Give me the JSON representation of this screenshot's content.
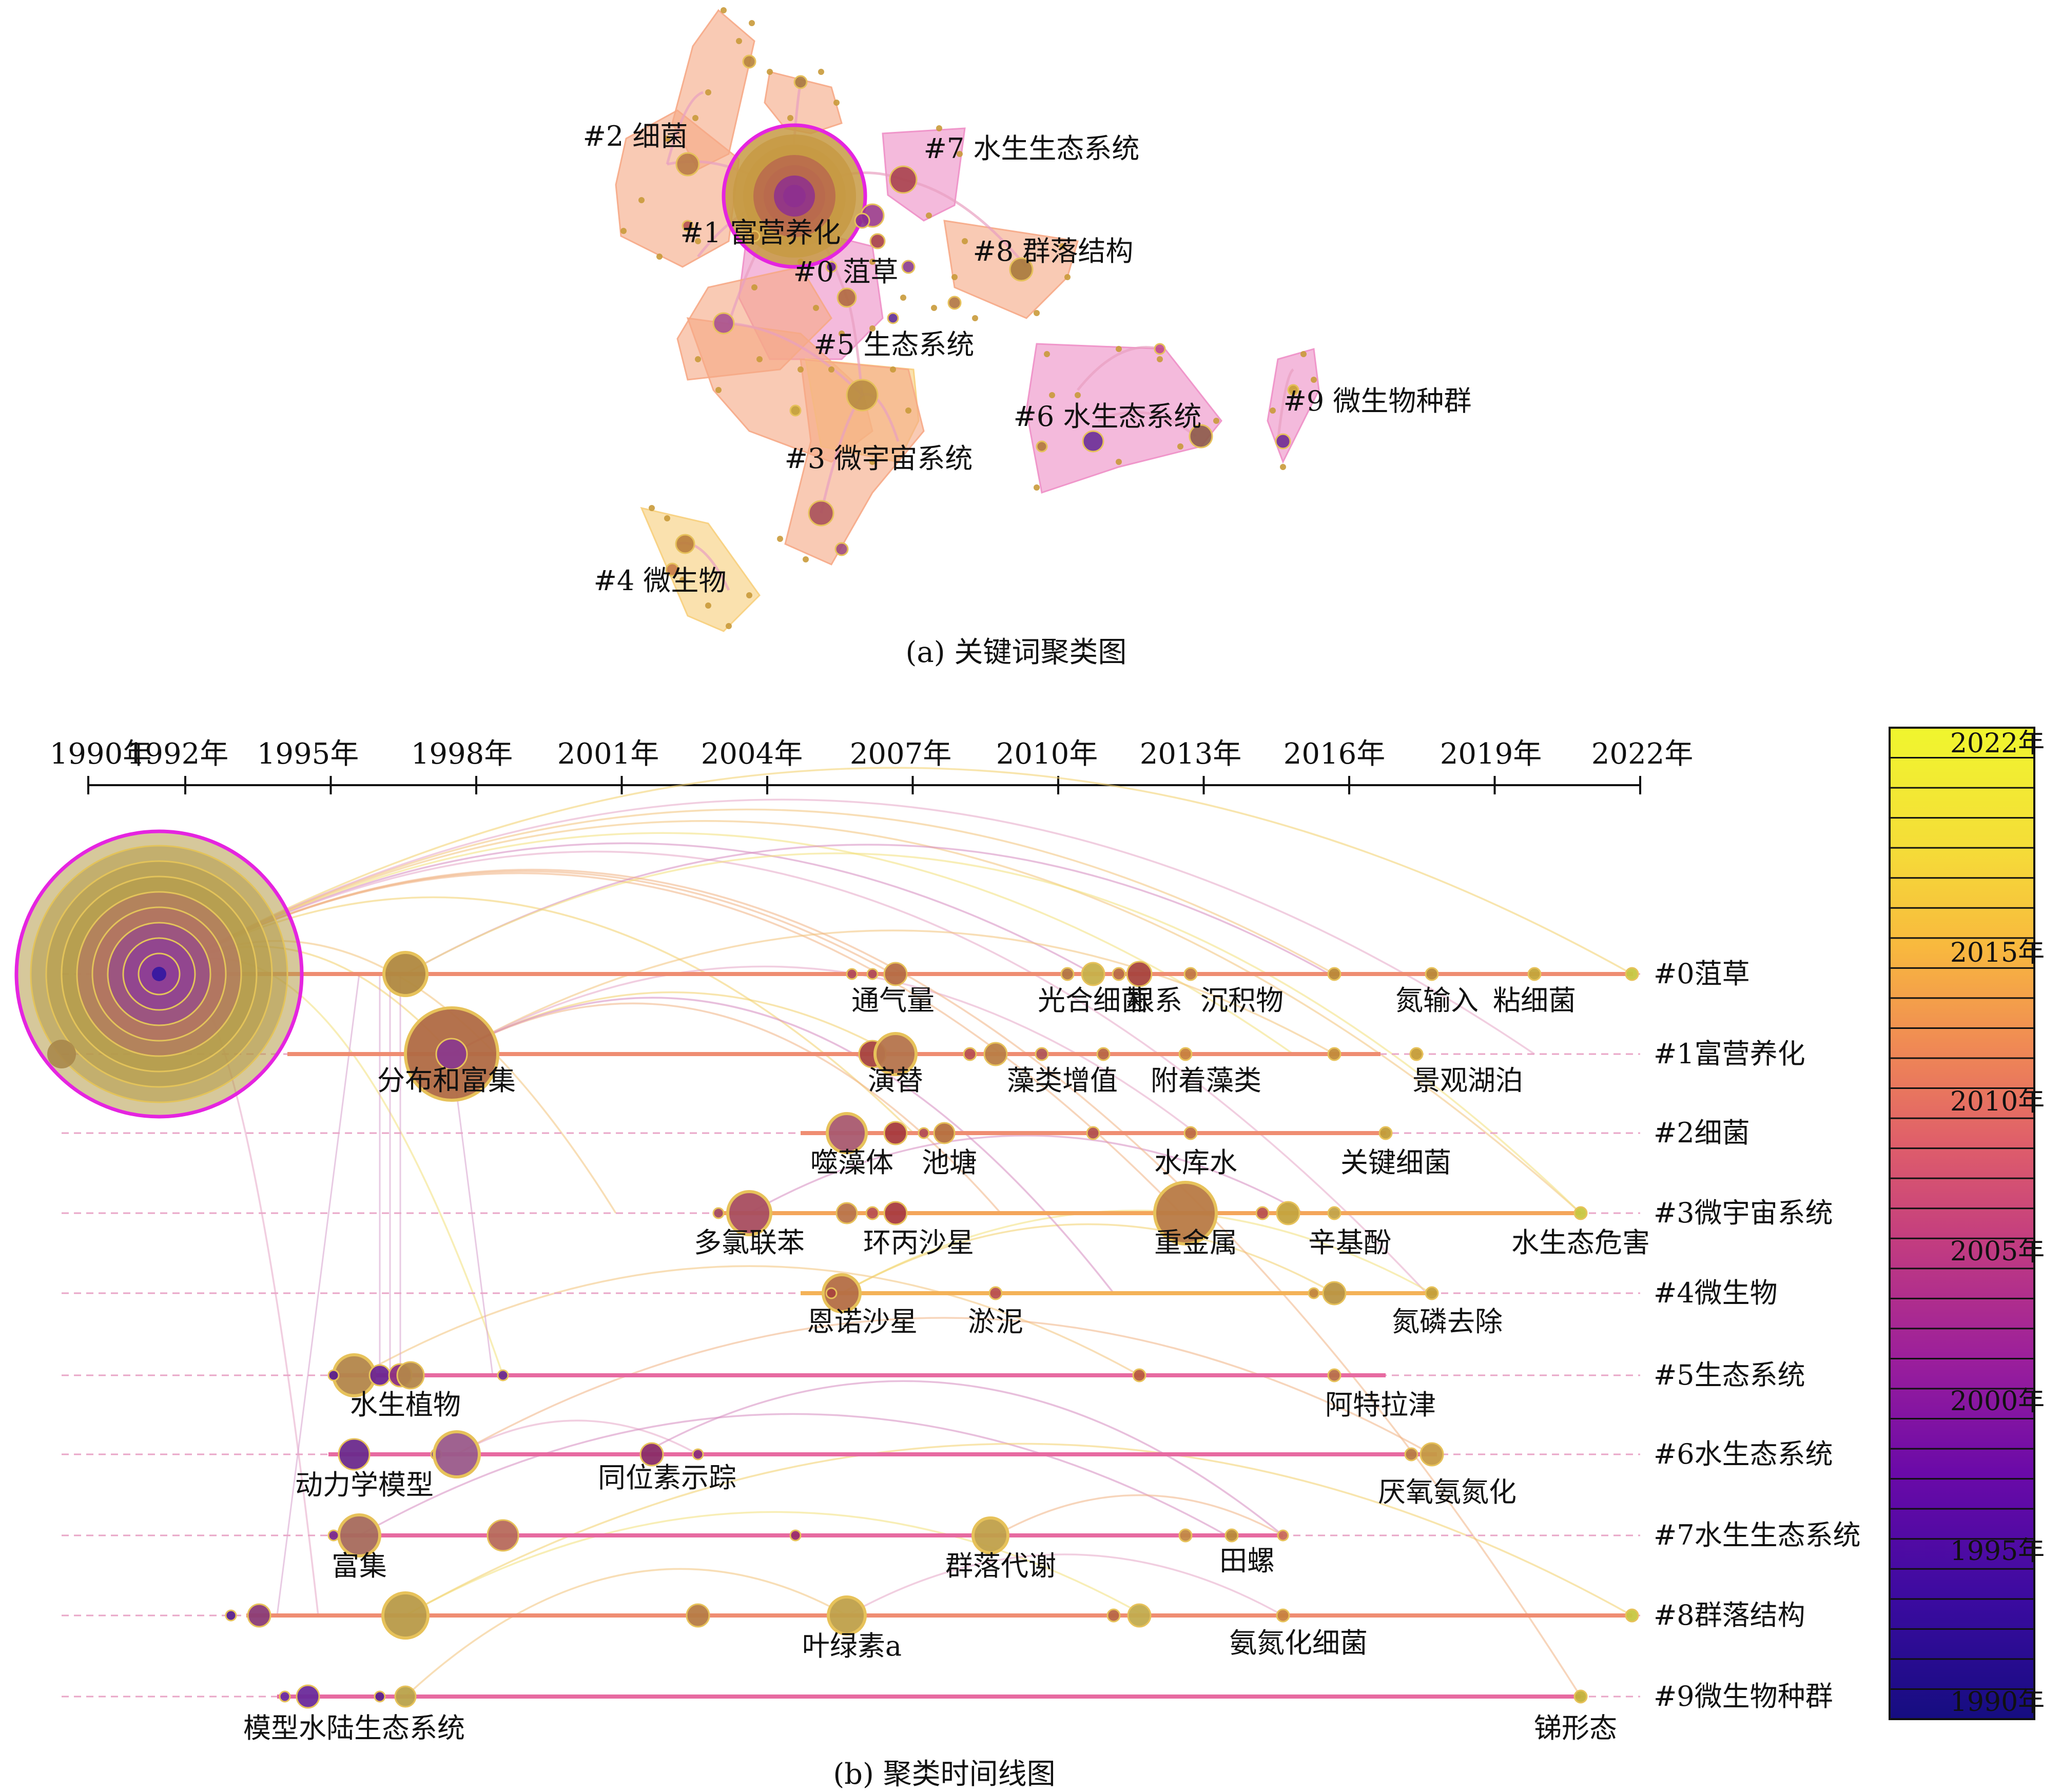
{
  "colors": {
    "gradient": [
      "#150d80",
      "#3b0ba0",
      "#6b0aa8",
      "#9a1e9c",
      "#c23c80",
      "#df5e6a",
      "#f08a54",
      "#f8b93e",
      "#f5dd38",
      "#f0f62e"
    ],
    "hull_orange": "#f6a986",
    "hull_pink": "#ee8fc6",
    "hull_yellow": "#f7cf7c",
    "hull_magenta_edge": "#d14fd3",
    "line_orange": "#ef8d72",
    "line_pink": "#e76aa1",
    "dashed": "#e9a6c7",
    "big_node_outline": "#e524e0"
  },
  "panel_a": {
    "caption": "(a) 关键词聚类图",
    "cluster_labels": [
      {
        "id": "c0",
        "text": "#0 菹草"
      },
      {
        "id": "c1",
        "text": "#1 富营养化"
      },
      {
        "id": "c2",
        "text": "#2 细菌"
      },
      {
        "id": "c3",
        "text": "#3 微宇宙系统"
      },
      {
        "id": "c4",
        "text": "#4 微生物"
      },
      {
        "id": "c5",
        "text": "#5 生态系统"
      },
      {
        "id": "c6",
        "text": "#6 水生态系统"
      },
      {
        "id": "c7",
        "text": "#7 水生生态系统"
      },
      {
        "id": "c8",
        "text": "#8 群落结构"
      },
      {
        "id": "c9",
        "text": "#9 微生物种群"
      }
    ]
  },
  "panel_b": {
    "caption": "(b) 聚类时间线图",
    "years": [
      "1990年",
      "1992年",
      "1995年",
      "1998年",
      "2001年",
      "2004年",
      "2007年",
      "2010年",
      "2013年",
      "2016年",
      "2019年",
      "2022年"
    ],
    "clusters": [
      {
        "label": "#0菹草",
        "keywords": [
          "通气量",
          "光合细菌",
          "根系",
          "沉积物",
          "氮输入",
          "粘细菌"
        ]
      },
      {
        "label": "#1富营养化",
        "keywords": [
          "分布和富集",
          "演替",
          "藻类增值",
          "附着藻类",
          "景观湖泊"
        ]
      },
      {
        "label": "#2细菌",
        "keywords": [
          "噬藻体",
          "池塘",
          "水库水",
          "关键细菌"
        ]
      },
      {
        "label": "#3微宇宙系统",
        "keywords": [
          "多氯联苯",
          "环丙沙星",
          "重金属",
          "辛基酚",
          "水生态危害"
        ]
      },
      {
        "label": "#4微生物",
        "keywords": [
          "恩诺沙星",
          "淤泥",
          "氮磷去除"
        ]
      },
      {
        "label": "#5生态系统",
        "keywords": [
          "水生植物",
          "阿特拉津"
        ]
      },
      {
        "label": "#6水生态系统",
        "keywords": [
          "动力学模型",
          "同位素示踪",
          "厌氧氨氮化"
        ]
      },
      {
        "label": "#7水生生态系统",
        "keywords": [
          "富集",
          "群落代谢",
          "田螺"
        ]
      },
      {
        "label": "#8群落结构",
        "keywords": [
          "叶绿素a",
          "氨氮化细菌"
        ]
      },
      {
        "label": "#9微生物种群",
        "keywords": [
          "模型水陆生态系统",
          "锑形态"
        ]
      }
    ],
    "legend": {
      "labels": [
        "2022年",
        "2015年",
        "2010年",
        "2005年",
        "2000年",
        "1995年",
        "1990年"
      ]
    }
  }
}
